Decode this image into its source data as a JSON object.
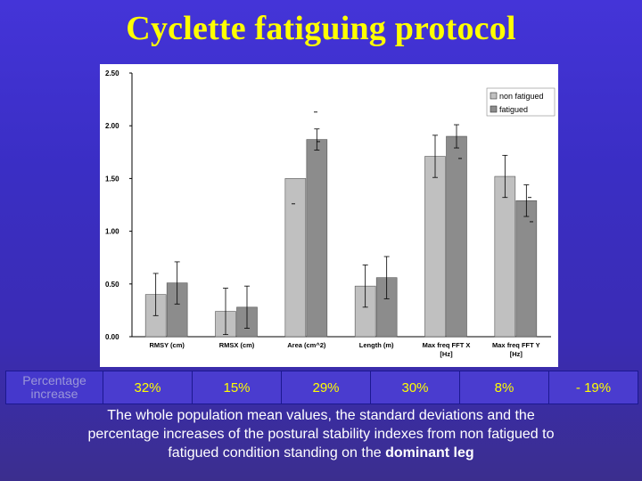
{
  "title": "Cyclette fatiguing protocol",
  "chart_data": {
    "type": "bar",
    "categories": [
      "RMSY (cm)",
      "RMSX (cm)",
      "Area (cm^2)",
      "Length (m)",
      "Max freq FFT X [Hz]",
      "Max freq FFT Y [Hz]"
    ],
    "series": [
      {
        "name": "non fatigued",
        "color": "#c0c0c0",
        "values": [
          0.4,
          0.24,
          1.5,
          0.48,
          1.71,
          1.52
        ],
        "errors": [
          0.2,
          0.22,
          0.0,
          0.2,
          0.2,
          0.2
        ]
      },
      {
        "name": "fatigued",
        "color": "#8c8c8c",
        "values": [
          0.51,
          0.28,
          1.87,
          0.56,
          1.9,
          1.29
        ],
        "errors": [
          0.2,
          0.2,
          0.1,
          0.2,
          0.11,
          0.15
        ]
      }
    ],
    "extra_marks": [
      {
        "value": 2.13
      },
      {
        "value": 1.85
      },
      {
        "value": 1.26
      },
      {
        "value": 1.69
      },
      {
        "value": 1.32
      },
      {
        "value": 1.09
      }
    ],
    "yticks": [
      "0.00",
      "0.50",
      "1.00",
      "1.50",
      "2.00",
      "2.50"
    ],
    "ylim": [
      0,
      2.5
    ],
    "grid": false,
    "legend_position": "top-right"
  },
  "percentage": {
    "header": "Percentage increase",
    "values": [
      "32%",
      "15%",
      "29%",
      "30%",
      "8%",
      "-  19%"
    ]
  },
  "caption": {
    "text": "The whole population mean values, the standard deviations and the percentage increases of the postural stability indexes from non fatigued to fatigued condition standing on the",
    "bold": "dominant leg"
  }
}
